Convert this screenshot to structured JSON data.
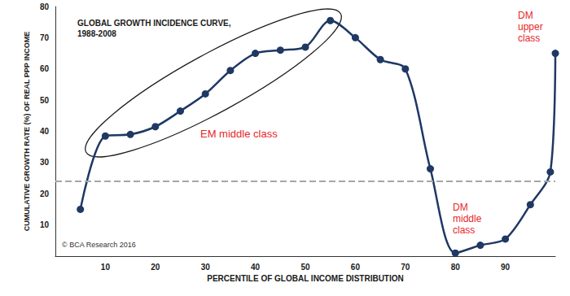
{
  "chart_data": {
    "type": "line",
    "title": "GLOBAL GROWTH INCIDENCE CURVE,\n1988-2008",
    "x_label": "PERCENTILE OF GLOBAL INCOME DISTRIBUTION",
    "y_label": "CUMULATIVE GROWTH RATE (%) OF REAL PPP INCOME",
    "x": [
      5,
      10,
      15,
      20,
      25,
      30,
      35,
      40,
      45,
      50,
      55,
      60,
      65,
      70,
      75,
      80,
      85,
      90,
      95,
      99,
      100
    ],
    "series": [
      {
        "values": [
          15,
          38.5,
          39,
          41.5,
          46.5,
          52,
          59.5,
          65,
          66,
          67,
          75.5,
          70,
          63,
          60,
          28,
          1,
          3.5,
          5.5,
          16.5,
          27,
          65
        ],
        "color": "#1f3864",
        "marker": "circle",
        "line_style": "solid"
      }
    ],
    "xlim": [
      0,
      100
    ],
    "xticks": [
      10,
      20,
      30,
      40,
      50,
      60,
      70,
      80,
      90
    ],
    "ylim": [
      0,
      80
    ],
    "yticks": [
      10,
      20,
      30,
      40,
      50,
      60,
      70,
      80
    ],
    "grid": false,
    "hline": {
      "value": 24,
      "color": "#a6a6a6",
      "line_style": "dashed"
    },
    "annotations": [
      {
        "text": "EM middle class",
        "color": "#e8262a"
      },
      {
        "text": "DM\nmiddle\nclass",
        "color": "#e8262a"
      },
      {
        "text": "DM\nupper\nclass",
        "color": "#e8262a"
      }
    ],
    "source": "© BCA Research 2016"
  }
}
